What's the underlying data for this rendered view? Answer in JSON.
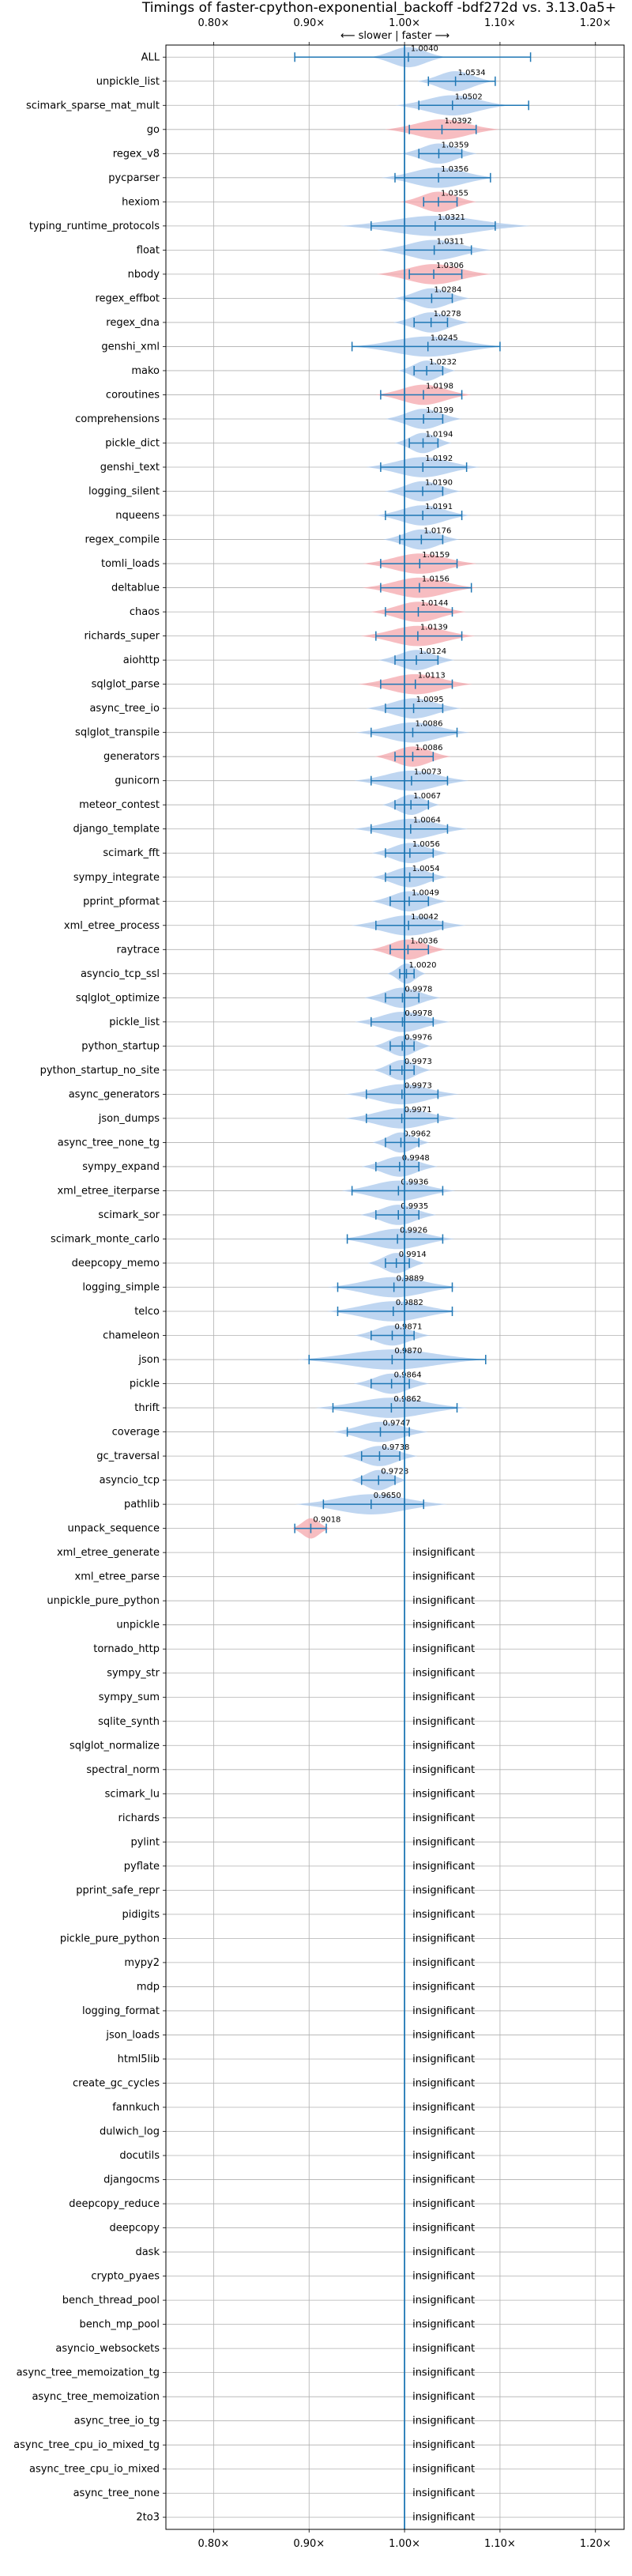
{
  "chart_data": {
    "type": "violin",
    "title": "Timings of faster-cpython-exponential_backoff -bdf272d vs. 3.13.0a5+",
    "direction_label": "⟵ slower | faster ⟶",
    "xlim": [
      0.75,
      1.23
    ],
    "x_ticks": [
      0.8,
      0.9,
      1.0,
      1.1,
      1.2
    ],
    "x_tick_labels": [
      "0.80×",
      "0.90×",
      "1.00×",
      "1.10×",
      "1.20×"
    ],
    "insignificant_label": "insignificant",
    "colors": {
      "faster": "#a9c8ec",
      "slower": "#f4a7ac",
      "errorbar": "#1f77b4",
      "grid": "#b0b0b0",
      "axis": "#000000"
    },
    "rows": [
      {
        "name": "ALL",
        "value": 1.004,
        "label": "1.0040",
        "lo": 0.885,
        "hi": 1.132,
        "spread": 0.02,
        "slower": false
      },
      {
        "name": "unpickle_list",
        "value": 1.0534,
        "label": "1.0534",
        "lo": 1.025,
        "hi": 1.095,
        "spread": 0.02,
        "slower": false
      },
      {
        "name": "scimark_sparse_mat_mult",
        "value": 1.0502,
        "label": "1.0502",
        "lo": 1.015,
        "hi": 1.13,
        "spread": 0.03,
        "slower": false
      },
      {
        "name": "go",
        "value": 1.0392,
        "label": "1.0392",
        "lo": 1.005,
        "hi": 1.075,
        "spread": 0.03,
        "slower": true
      },
      {
        "name": "regex_v8",
        "value": 1.0359,
        "label": "1.0359",
        "lo": 1.015,
        "hi": 1.06,
        "spread": 0.02,
        "slower": false
      },
      {
        "name": "pycparser",
        "value": 1.0356,
        "label": "1.0356",
        "lo": 0.99,
        "hi": 1.09,
        "spread": 0.03,
        "slower": false
      },
      {
        "name": "hexiom",
        "value": 1.0355,
        "label": "1.0355",
        "lo": 1.02,
        "hi": 1.055,
        "spread": 0.02,
        "slower": true
      },
      {
        "name": "typing_runtime_protocols",
        "value": 1.0321,
        "label": "1.0321",
        "lo": 0.965,
        "hi": 1.095,
        "spread": 0.05,
        "slower": false
      },
      {
        "name": "float",
        "value": 1.0311,
        "label": "1.0311",
        "lo": 1.0,
        "hi": 1.07,
        "spread": 0.03,
        "slower": false
      },
      {
        "name": "nbody",
        "value": 1.0306,
        "label": "1.0306",
        "lo": 1.005,
        "hi": 1.06,
        "spread": 0.03,
        "slower": true
      },
      {
        "name": "regex_effbot",
        "value": 1.0284,
        "label": "1.0284",
        "lo": 1.0,
        "hi": 1.05,
        "spread": 0.02,
        "slower": false
      },
      {
        "name": "regex_dna",
        "value": 1.0278,
        "label": "1.0278",
        "lo": 1.01,
        "hi": 1.045,
        "spread": 0.02,
        "slower": false
      },
      {
        "name": "genshi_xml",
        "value": 1.0245,
        "label": "1.0245",
        "lo": 0.945,
        "hi": 1.1,
        "spread": 0.04,
        "slower": false
      },
      {
        "name": "mako",
        "value": 1.0232,
        "label": "1.0232",
        "lo": 1.01,
        "hi": 1.04,
        "spread": 0.015,
        "slower": false
      },
      {
        "name": "coroutines",
        "value": 1.0198,
        "label": "1.0198",
        "lo": 0.975,
        "hi": 1.06,
        "spread": 0.025,
        "slower": true
      },
      {
        "name": "comprehensions",
        "value": 1.0199,
        "label": "1.0199",
        "lo": 1.0,
        "hi": 1.04,
        "spread": 0.02,
        "slower": false
      },
      {
        "name": "pickle_dict",
        "value": 1.0194,
        "label": "1.0194",
        "lo": 1.005,
        "hi": 1.035,
        "spread": 0.015,
        "slower": false
      },
      {
        "name": "genshi_text",
        "value": 1.0192,
        "label": "1.0192",
        "lo": 0.975,
        "hi": 1.065,
        "spread": 0.03,
        "slower": false
      },
      {
        "name": "logging_silent",
        "value": 1.019,
        "label": "1.0190",
        "lo": 1.0,
        "hi": 1.04,
        "spread": 0.02,
        "slower": false
      },
      {
        "name": "nqueens",
        "value": 1.0191,
        "label": "1.0191",
        "lo": 0.98,
        "hi": 1.06,
        "spread": 0.025,
        "slower": false
      },
      {
        "name": "regex_compile",
        "value": 1.0176,
        "label": "1.0176",
        "lo": 0.995,
        "hi": 1.04,
        "spread": 0.02,
        "slower": false
      },
      {
        "name": "tomli_loads",
        "value": 1.0159,
        "label": "1.0159",
        "lo": 0.975,
        "hi": 1.055,
        "spread": 0.03,
        "slower": true
      },
      {
        "name": "deltablue",
        "value": 1.0156,
        "label": "1.0156",
        "lo": 0.975,
        "hi": 1.07,
        "spread": 0.03,
        "slower": true
      },
      {
        "name": "chaos",
        "value": 1.0144,
        "label": "1.0144",
        "lo": 0.98,
        "hi": 1.05,
        "spread": 0.025,
        "slower": true
      },
      {
        "name": "richards_super",
        "value": 1.0139,
        "label": "1.0139",
        "lo": 0.97,
        "hi": 1.06,
        "spread": 0.03,
        "slower": true
      },
      {
        "name": "aiohttp",
        "value": 1.0124,
        "label": "1.0124",
        "lo": 0.99,
        "hi": 1.035,
        "spread": 0.02,
        "slower": false
      },
      {
        "name": "sqlglot_parse",
        "value": 1.0113,
        "label": "1.0113",
        "lo": 0.975,
        "hi": 1.05,
        "spread": 0.03,
        "slower": true
      },
      {
        "name": "async_tree_io",
        "value": 1.0095,
        "label": "1.0095",
        "lo": 0.98,
        "hi": 1.04,
        "spread": 0.025,
        "slower": false
      },
      {
        "name": "sqlglot_transpile",
        "value": 1.0086,
        "label": "1.0086",
        "lo": 0.965,
        "hi": 1.055,
        "spread": 0.03,
        "slower": false
      },
      {
        "name": "generators",
        "value": 1.0086,
        "label": "1.0086",
        "lo": 0.99,
        "hi": 1.03,
        "spread": 0.02,
        "slower": true
      },
      {
        "name": "gunicorn",
        "value": 1.0073,
        "label": "1.0073",
        "lo": 0.965,
        "hi": 1.045,
        "spread": 0.03,
        "slower": false
      },
      {
        "name": "meteor_contest",
        "value": 1.0067,
        "label": "1.0067",
        "lo": 0.99,
        "hi": 1.025,
        "spread": 0.015,
        "slower": false
      },
      {
        "name": "django_template",
        "value": 1.0064,
        "label": "1.0064",
        "lo": 0.965,
        "hi": 1.045,
        "spread": 0.03,
        "slower": false
      },
      {
        "name": "scimark_fft",
        "value": 1.0056,
        "label": "1.0056",
        "lo": 0.98,
        "hi": 1.03,
        "spread": 0.02,
        "slower": false
      },
      {
        "name": "sympy_integrate",
        "value": 1.0054,
        "label": "1.0054",
        "lo": 0.98,
        "hi": 1.03,
        "spread": 0.02,
        "slower": false
      },
      {
        "name": "pprint_pformat",
        "value": 1.0049,
        "label": "1.0049",
        "lo": 0.985,
        "hi": 1.025,
        "spread": 0.02,
        "slower": false
      },
      {
        "name": "xml_etree_process",
        "value": 1.0042,
        "label": "1.0042",
        "lo": 0.97,
        "hi": 1.04,
        "spread": 0.03,
        "slower": false
      },
      {
        "name": "raytrace",
        "value": 1.0036,
        "label": "1.0036",
        "lo": 0.985,
        "hi": 1.025,
        "spread": 0.02,
        "slower": true
      },
      {
        "name": "asyncio_tcp_ssl",
        "value": 1.002,
        "label": "1.0020",
        "lo": 0.995,
        "hi": 1.01,
        "spread": 0.01,
        "slower": false
      },
      {
        "name": "sqlglot_optimize",
        "value": 0.9978,
        "label": "0.9978",
        "lo": 0.98,
        "hi": 1.015,
        "spread": 0.02,
        "slower": false
      },
      {
        "name": "pickle_list",
        "value": 0.9978,
        "label": "0.9978",
        "lo": 0.965,
        "hi": 1.03,
        "spread": 0.025,
        "slower": false
      },
      {
        "name": "python_startup",
        "value": 0.9976,
        "label": "0.9976",
        "lo": 0.985,
        "hi": 1.01,
        "spread": 0.015,
        "slower": false
      },
      {
        "name": "python_startup_no_site",
        "value": 0.9973,
        "label": "0.9973",
        "lo": 0.985,
        "hi": 1.01,
        "spread": 0.015,
        "slower": false
      },
      {
        "name": "async_generators",
        "value": 0.9973,
        "label": "0.9973",
        "lo": 0.96,
        "hi": 1.035,
        "spread": 0.03,
        "slower": false
      },
      {
        "name": "json_dumps",
        "value": 0.9971,
        "label": "0.9971",
        "lo": 0.96,
        "hi": 1.035,
        "spread": 0.03,
        "slower": false
      },
      {
        "name": "async_tree_none_tg",
        "value": 0.9962,
        "label": "0.9962",
        "lo": 0.98,
        "hi": 1.015,
        "spread": 0.015,
        "slower": false
      },
      {
        "name": "sympy_expand",
        "value": 0.9948,
        "label": "0.9948",
        "lo": 0.97,
        "hi": 1.015,
        "spread": 0.02,
        "slower": false
      },
      {
        "name": "xml_etree_iterparse",
        "value": 0.9936,
        "label": "0.9936",
        "lo": 0.945,
        "hi": 1.04,
        "spread": 0.03,
        "slower": false
      },
      {
        "name": "scimark_sor",
        "value": 0.9935,
        "label": "0.9935",
        "lo": 0.97,
        "hi": 1.015,
        "spread": 0.02,
        "slower": false
      },
      {
        "name": "scimark_monte_carlo",
        "value": 0.9926,
        "label": "0.9926",
        "lo": 0.94,
        "hi": 1.04,
        "spread": 0.03,
        "slower": false
      },
      {
        "name": "deepcopy_memo",
        "value": 0.9914,
        "label": "0.9914",
        "lo": 0.98,
        "hi": 1.005,
        "spread": 0.015,
        "slower": false
      },
      {
        "name": "logging_simple",
        "value": 0.9889,
        "label": "0.9889",
        "lo": 0.93,
        "hi": 1.05,
        "spread": 0.035,
        "slower": false
      },
      {
        "name": "telco",
        "value": 0.9882,
        "label": "0.9882",
        "lo": 0.93,
        "hi": 1.05,
        "spread": 0.035,
        "slower": false
      },
      {
        "name": "chameleon",
        "value": 0.9871,
        "label": "0.9871",
        "lo": 0.965,
        "hi": 1.01,
        "spread": 0.02,
        "slower": false
      },
      {
        "name": "json",
        "value": 0.987,
        "label": "0.9870",
        "lo": 0.9,
        "hi": 1.085,
        "spread": 0.05,
        "slower": false
      },
      {
        "name": "pickle",
        "value": 0.9864,
        "label": "0.9864",
        "lo": 0.965,
        "hi": 1.005,
        "spread": 0.02,
        "slower": false
      },
      {
        "name": "thrift",
        "value": 0.9862,
        "label": "0.9862",
        "lo": 0.925,
        "hi": 1.055,
        "spread": 0.04,
        "slower": false
      },
      {
        "name": "coverage",
        "value": 0.9747,
        "label": "0.9747",
        "lo": 0.94,
        "hi": 1.005,
        "spread": 0.025,
        "slower": false
      },
      {
        "name": "gc_traversal",
        "value": 0.9738,
        "label": "0.9738",
        "lo": 0.955,
        "hi": 0.995,
        "spread": 0.02,
        "slower": false
      },
      {
        "name": "asyncio_tcp",
        "value": 0.9728,
        "label": "0.9728",
        "lo": 0.955,
        "hi": 0.99,
        "spread": 0.015,
        "slower": false
      },
      {
        "name": "pathlib",
        "value": 0.965,
        "label": "0.9650",
        "lo": 0.915,
        "hi": 1.02,
        "spread": 0.04,
        "slower": false
      },
      {
        "name": "unpack_sequence",
        "value": 0.9018,
        "label": "0.9018",
        "lo": 0.885,
        "hi": 0.918,
        "spread": 0.01,
        "slower": true
      },
      {
        "name": "xml_etree_generate",
        "insignificant": true
      },
      {
        "name": "xml_etree_parse",
        "insignificant": true
      },
      {
        "name": "unpickle_pure_python",
        "insignificant": true
      },
      {
        "name": "unpickle",
        "insignificant": true
      },
      {
        "name": "tornado_http",
        "insignificant": true
      },
      {
        "name": "sympy_str",
        "insignificant": true
      },
      {
        "name": "sympy_sum",
        "insignificant": true
      },
      {
        "name": "sqlite_synth",
        "insignificant": true
      },
      {
        "name": "sqlglot_normalize",
        "insignificant": true
      },
      {
        "name": "spectral_norm",
        "insignificant": true
      },
      {
        "name": "scimark_lu",
        "insignificant": true
      },
      {
        "name": "richards",
        "insignificant": true
      },
      {
        "name": "pylint",
        "insignificant": true
      },
      {
        "name": "pyflate",
        "insignificant": true
      },
      {
        "name": "pprint_safe_repr",
        "insignificant": true
      },
      {
        "name": "pidigits",
        "insignificant": true
      },
      {
        "name": "pickle_pure_python",
        "insignificant": true
      },
      {
        "name": "mypy2",
        "insignificant": true
      },
      {
        "name": "mdp",
        "insignificant": true
      },
      {
        "name": "logging_format",
        "insignificant": true
      },
      {
        "name": "json_loads",
        "insignificant": true
      },
      {
        "name": "html5lib",
        "insignificant": true
      },
      {
        "name": "create_gc_cycles",
        "insignificant": true
      },
      {
        "name": "fannkuch",
        "insignificant": true
      },
      {
        "name": "dulwich_log",
        "insignificant": true
      },
      {
        "name": "docutils",
        "insignificant": true
      },
      {
        "name": "djangocms",
        "insignificant": true
      },
      {
        "name": "deepcopy_reduce",
        "insignificant": true
      },
      {
        "name": "deepcopy",
        "insignificant": true
      },
      {
        "name": "dask",
        "insignificant": true
      },
      {
        "name": "crypto_pyaes",
        "insignificant": true
      },
      {
        "name": "bench_thread_pool",
        "insignificant": true
      },
      {
        "name": "bench_mp_pool",
        "insignificant": true
      },
      {
        "name": "asyncio_websockets",
        "insignificant": true
      },
      {
        "name": "async_tree_memoization_tg",
        "insignificant": true
      },
      {
        "name": "async_tree_memoization",
        "insignificant": true
      },
      {
        "name": "async_tree_io_tg",
        "insignificant": true
      },
      {
        "name": "async_tree_cpu_io_mixed_tg",
        "insignificant": true
      },
      {
        "name": "async_tree_cpu_io_mixed",
        "insignificant": true
      },
      {
        "name": "async_tree_none",
        "insignificant": true
      },
      {
        "name": "2to3",
        "insignificant": true
      }
    ]
  }
}
